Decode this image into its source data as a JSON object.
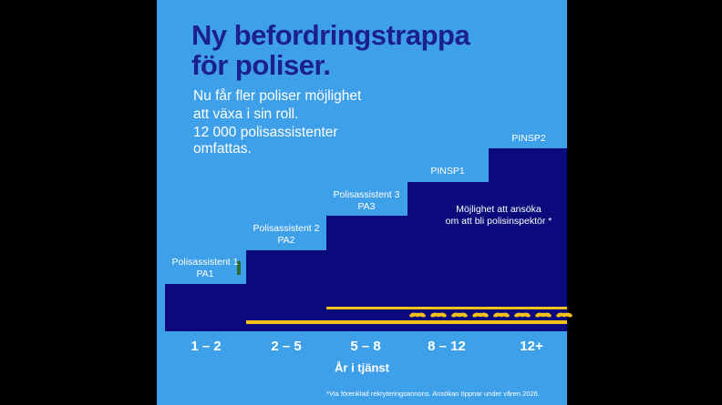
{
  "header": {
    "title": [
      "Ny befordringstrappa",
      "för poliser."
    ],
    "subtitle": [
      "Nu får fler poliser möjlighet",
      "att växa i sin roll.",
      "12 000 polisassistenter",
      "omfattas."
    ]
  },
  "steps": [
    {
      "label": [
        "Polisassistent 1",
        "PA1"
      ],
      "years": "1 – 2"
    },
    {
      "label": [
        "Polisassistent 2",
        "PA2"
      ],
      "years": "2 – 5"
    },
    {
      "label": [
        "Polisassistent 3",
        "PA3"
      ],
      "years": "5 – 8"
    },
    {
      "label": [
        "PINSP1"
      ],
      "years": "8 – 12"
    },
    {
      "label": [
        "PINSP2"
      ],
      "years": "12+"
    }
  ],
  "note": [
    "Möjlighet att ansöka",
    "om att bli polisinspektör *"
  ],
  "axis_label": "År i tjänst",
  "footnote": "*Via förenklad rekryteringsannons. Ansökan öppnar under våren 2026."
}
